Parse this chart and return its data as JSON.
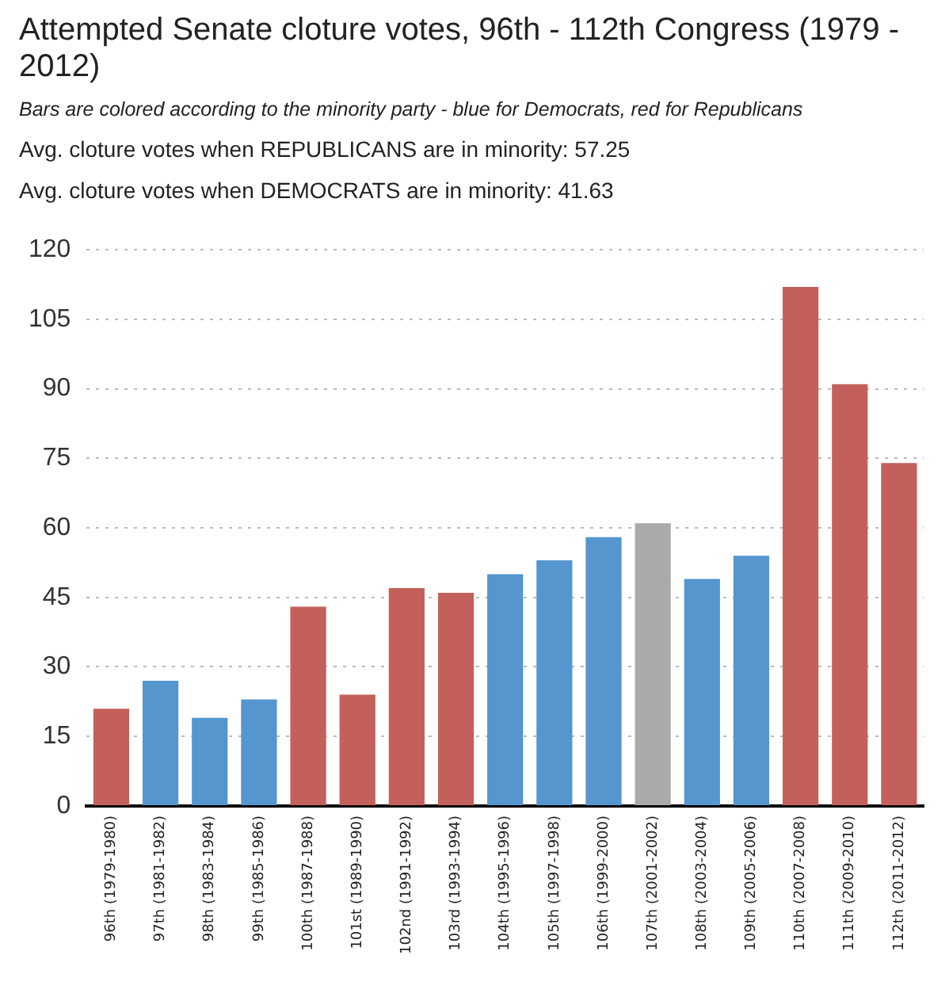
{
  "chart_data": {
    "type": "bar",
    "title": "Attempted Senate cloture votes, 96th - 112th Congress (1979 - 2012)",
    "subtitle": "Bars are colored according to the minority party - blue for Democrats, red for Republicans",
    "annotations": [
      "Avg. cloture votes when REPUBLICANS are in minority: 57.25",
      "Avg. cloture votes when DEMOCRATS are in minority: 41.63"
    ],
    "categories": [
      "96th (1979-1980)",
      "97th (1981-1982)",
      "98th (1983-1984)",
      "99th (1985-1986)",
      "100th (1987-1988)",
      "101st (1989-1990)",
      "102nd (1991-1992)",
      "103rd (1993-1994)",
      "104th (1995-1996)",
      "105th (1997-1998)",
      "106th (1999-2000)",
      "107th (2001-2002)",
      "108th (2003-2004)",
      "109th (2005-2006)",
      "110th (2007-2008)",
      "111th (2009-2010)",
      "112th (2011-2012)"
    ],
    "values": [
      21,
      27,
      19,
      23,
      43,
      24,
      47,
      46,
      50,
      53,
      58,
      61,
      49,
      54,
      112,
      91,
      74
    ],
    "colors": [
      "#c4605b",
      "#5596ce",
      "#5596ce",
      "#5596ce",
      "#c4605b",
      "#c4605b",
      "#c4605b",
      "#c4605b",
      "#5596ce",
      "#5596ce",
      "#5596ce",
      "#aaaaab",
      "#5596ce",
      "#5596ce",
      "#c4605b",
      "#c4605b",
      "#c4605b"
    ],
    "ylim": [
      0,
      120
    ],
    "yticks": [
      0,
      15,
      30,
      45,
      60,
      75,
      90,
      105,
      120
    ],
    "grid": "y",
    "legend": false
  }
}
